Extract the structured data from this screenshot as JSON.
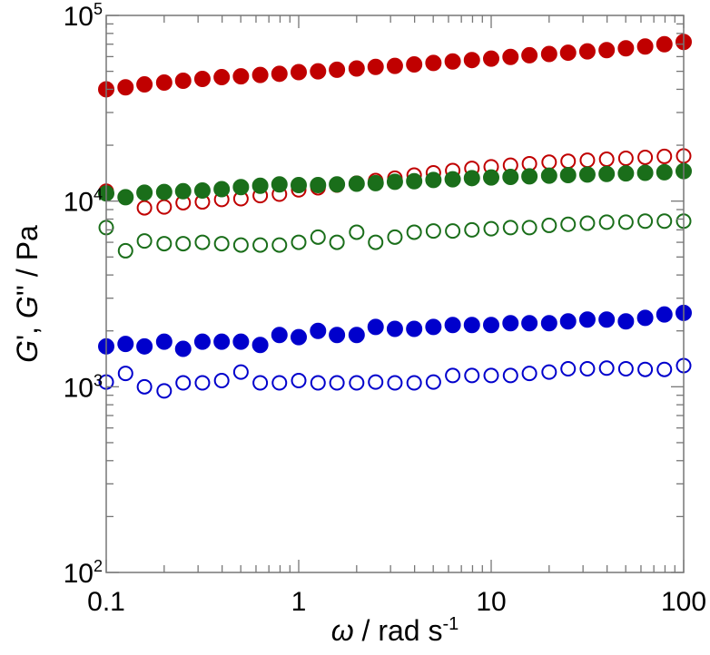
{
  "chart_data": {
    "type": "scatter",
    "x_scale": "log",
    "y_scale": "log",
    "xlim": [
      0.1,
      100
    ],
    "ylim": [
      100,
      100000
    ],
    "grid": false,
    "legend": "none",
    "xlabel": {
      "symbol": "ω",
      "rest": " / rad s",
      "exponent": "-1"
    },
    "ylabel": {
      "g1": "G",
      "p1": "', ",
      "g2": "G",
      "p2": "'' / Pa"
    },
    "x_ticks": [
      {
        "value": 0.1,
        "label": "0.1"
      },
      {
        "value": 1,
        "label": "1"
      },
      {
        "value": 10,
        "label": "10"
      },
      {
        "value": 100,
        "label": "100"
      }
    ],
    "y_ticks": [
      {
        "value": 100,
        "base": "10",
        "exp": "2"
      },
      {
        "value": 1000,
        "base": "10",
        "exp": "3"
      },
      {
        "value": 10000,
        "base": "10",
        "exp": "4"
      },
      {
        "value": 100000,
        "base": "10",
        "exp": "5"
      }
    ],
    "x": [
      0.1,
      0.126,
      0.158,
      0.2,
      0.251,
      0.316,
      0.398,
      0.501,
      0.631,
      0.794,
      1.0,
      1.26,
      1.58,
      2.0,
      2.51,
      3.16,
      3.98,
      5.01,
      6.31,
      7.94,
      10.0,
      12.6,
      15.8,
      20.0,
      25.1,
      31.6,
      39.8,
      50.1,
      63.1,
      79.4,
      100.0
    ],
    "series": [
      {
        "color": "#c00000",
        "filled": true,
        "values": [
          40000,
          41000,
          42500,
          43500,
          44500,
          45500,
          46500,
          47000,
          47800,
          48500,
          49500,
          50000,
          51000,
          51800,
          52800,
          53500,
          54500,
          55500,
          56500,
          57500,
          58500,
          59800,
          61000,
          62000,
          63000,
          64000,
          65000,
          66500,
          68000,
          70000,
          72000
        ]
      },
      {
        "color": "#c00000",
        "filled": false,
        "values": [
          11300,
          10500,
          9200,
          9300,
          9800,
          9900,
          10200,
          10300,
          10700,
          10900,
          11500,
          11800,
          12200,
          12500,
          12900,
          13300,
          13800,
          14200,
          14600,
          15000,
          15300,
          15600,
          15900,
          16200,
          16400,
          16600,
          16800,
          17000,
          17200,
          17400,
          17500
        ]
      },
      {
        "color": "#1a6e1a",
        "filled": true,
        "values": [
          11000,
          10500,
          11100,
          11200,
          11300,
          11400,
          11600,
          11900,
          12100,
          12300,
          12200,
          12200,
          12300,
          12400,
          12500,
          12700,
          12800,
          13000,
          13100,
          13300,
          13400,
          13500,
          13600,
          13700,
          13800,
          13900,
          14000,
          14100,
          14200,
          14300,
          14500
        ]
      },
      {
        "color": "#1a6e1a",
        "filled": false,
        "values": [
          7200,
          5400,
          6100,
          5900,
          5900,
          6000,
          5900,
          5800,
          5800,
          5800,
          6000,
          6400,
          6000,
          6800,
          6000,
          6400,
          6800,
          6900,
          6900,
          7000,
          7100,
          7200,
          7200,
          7400,
          7500,
          7600,
          7700,
          7700,
          7800,
          7800,
          7800
        ]
      },
      {
        "color": "#0000cc",
        "filled": true,
        "values": [
          1650,
          1700,
          1650,
          1750,
          1600,
          1750,
          1750,
          1750,
          1680,
          1900,
          1850,
          2000,
          1900,
          1900,
          2100,
          2050,
          2050,
          2100,
          2150,
          2150,
          2150,
          2200,
          2200,
          2200,
          2250,
          2300,
          2300,
          2250,
          2350,
          2450,
          2500
        ]
      },
      {
        "color": "#0000cc",
        "filled": false,
        "values": [
          1060,
          1180,
          1000,
          950,
          1050,
          1050,
          1080,
          1200,
          1050,
          1050,
          1080,
          1050,
          1050,
          1050,
          1060,
          1050,
          1050,
          1060,
          1150,
          1150,
          1150,
          1150,
          1180,
          1200,
          1250,
          1250,
          1260,
          1250,
          1240,
          1240,
          1300
        ]
      }
    ]
  }
}
